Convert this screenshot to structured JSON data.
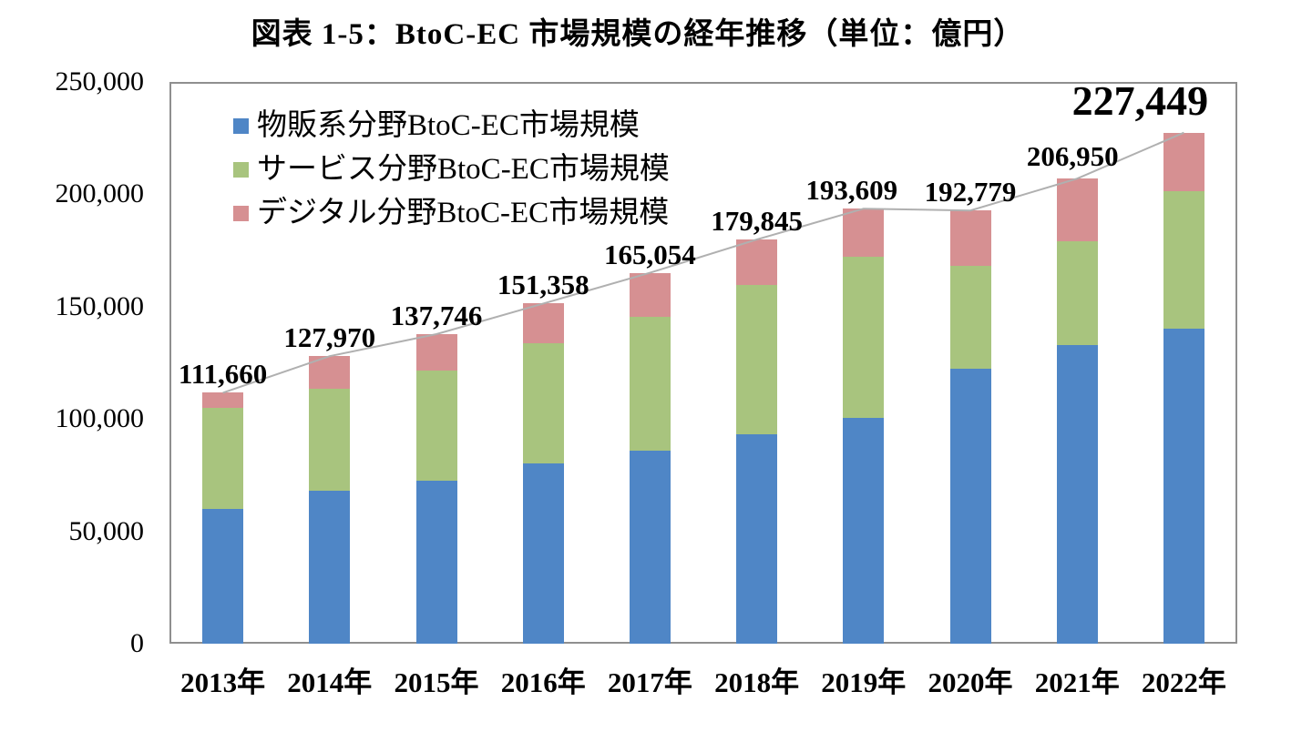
{
  "title": "図表 1-5：BtoC-EC 市場規模の経年推移（単位：億円）",
  "chart_data": {
    "type": "bar",
    "stacked": true,
    "title": "図表 1-5：BtoC-EC 市場規模の経年推移（単位：億円）",
    "unit": "億円",
    "categories": [
      "2013年",
      "2014年",
      "2015年",
      "2016年",
      "2017年",
      "2018年",
      "2019年",
      "2020年",
      "2021年",
      "2022年"
    ],
    "series": [
      {
        "key": "merchandise",
        "name": "物販系分野BtoC-EC市場規模",
        "color": "#4f86c6",
        "values": [
          59931,
          68043,
          72398,
          80043,
          86008,
          92992,
          100515,
          122333,
          132865,
          139997
        ]
      },
      {
        "key": "services",
        "name": "サービス分野BtoC-EC市場規模",
        "color": "#a8c47e",
        "values": [
          44816,
          45281,
          49014,
          53532,
          59568,
          66471,
          71672,
          45832,
          46424,
          61477
        ]
      },
      {
        "key": "digital",
        "name": "デジタル分野BtoC-EC市場規模",
        "color": "#d69092",
        "values": [
          6913,
          14646,
          16334,
          17783,
          19478,
          20382,
          21422,
          24614,
          27661,
          25975
        ]
      }
    ],
    "totals": [
      111660,
      127970,
      137746,
      151358,
      165054,
      179845,
      193609,
      192779,
      206950,
      227449
    ],
    "total_labels": [
      "111,660",
      "127,970",
      "137,746",
      "151,358",
      "165,054",
      "179,845",
      "193,609",
      "192,779",
      "206,950",
      "227,449"
    ],
    "y_ticks": [
      "0",
      "50,000",
      "100,000",
      "150,000",
      "200,000",
      "250,000"
    ],
    "ylim": [
      0,
      250000
    ],
    "grid": false,
    "legend_position": "top-left-inside",
    "connector_line_color": "#b0b0b0",
    "border_color": "#8f8f8f"
  }
}
